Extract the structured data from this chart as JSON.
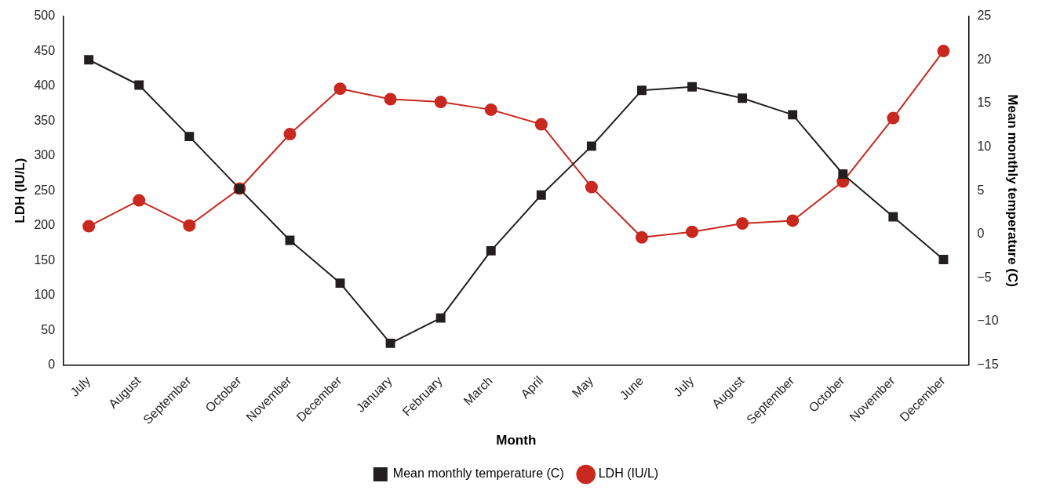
{
  "chart_data": {
    "type": "line",
    "xlabel": "Month",
    "ylabel": "LDH (IU/L)",
    "y2label": "Mean monthly temperature (C)",
    "categories": [
      "July",
      "August",
      "September",
      "October",
      "November",
      "December",
      "January",
      "February",
      "March",
      "April",
      "May",
      "June",
      "July",
      "August",
      "September",
      "October",
      "November",
      "December"
    ],
    "series": [
      {
        "name": "LDH (IU/L)",
        "color": "#c8281e",
        "marker": "circle",
        "values": [
          199,
          236,
          200,
          253,
          331,
          396,
          381,
          377,
          366,
          345,
          255,
          183,
          191,
          203,
          207,
          263,
          354,
          450
        ]
      },
      {
        "name": "Mean monthly temperature (C)",
        "color": "#231f20",
        "marker": "square",
        "axis": "y2",
        "values": [
          20,
          17.1,
          11.2,
          5.2,
          -0.7,
          -5.6,
          -12.5,
          -9.6,
          -1.9,
          4.5,
          10.1,
          16.5,
          16.9,
          15.6,
          13.7,
          6.9,
          2.0,
          -2.9
        ]
      }
    ],
    "ylim": [
      0,
      500
    ],
    "yticks": [
      0,
      50,
      100,
      150,
      200,
      250,
      300,
      350,
      400,
      450,
      500
    ],
    "y2lim": [
      -15,
      25
    ],
    "y2ticks": [
      {
        "value": -15,
        "label": "−15"
      },
      {
        "value": -10,
        "label": "−10"
      },
      {
        "value": -5,
        "label": "−5"
      },
      0,
      5,
      10,
      15,
      20,
      25
    ],
    "grid": false,
    "legend": "bottom"
  }
}
